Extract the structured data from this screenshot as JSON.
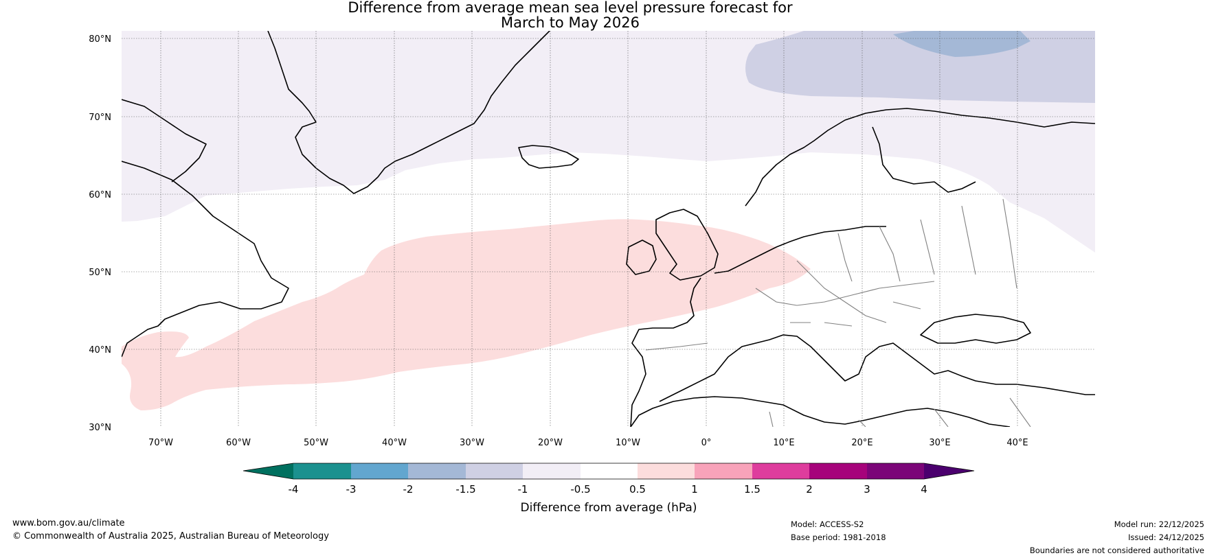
{
  "title": {
    "line1": "Difference from average mean sea level pressure forecast for",
    "line2": "March to May 2026"
  },
  "map": {
    "lat_labels": [
      "80°N",
      "70°N",
      "60°N",
      "50°N",
      "40°N",
      "30°N"
    ],
    "lon_labels": [
      "70°W",
      "60°W",
      "50°W",
      "40°W",
      "30°W",
      "20°W",
      "10°W",
      "0°",
      "10°E",
      "20°E",
      "30°E",
      "40°E"
    ],
    "lat_range": [
      30,
      81
    ],
    "lon_range": [
      -75,
      50
    ],
    "anomaly_regions": [
      {
        "name": "arctic-low-anomaly",
        "bin": "-2 to -1.5"
      },
      {
        "name": "barents-low-anomaly",
        "bin": "-1.5 to -1"
      },
      {
        "name": "north-low-anomaly",
        "bin": "-1 to -0.5"
      },
      {
        "name": "atlantic-high-anomaly",
        "bin": "0.5 to 1"
      }
    ]
  },
  "colorbar": {
    "ticks": [
      "-4",
      "-3",
      "-2",
      "-1.5",
      "-1",
      "-0.5",
      "0.5",
      "1",
      "1.5",
      "2",
      "3",
      "4"
    ],
    "colors": [
      "#00705f",
      "#1b918f",
      "#62a6cf",
      "#a4b8d6",
      "#cfd0e4",
      "#f2eef6",
      "#ffffff",
      "#fcdddd",
      "#f8a3ba",
      "#de3d9d",
      "#a6037b",
      "#7b0578",
      "#4b006e"
    ],
    "label": "Difference from average (hPa)"
  },
  "footer": {
    "website": "www.bom.gov.au/climate",
    "copyright": "© Commonwealth of Australia 2025, Australian Bureau of Meteorology",
    "model": "Model: ACCESS-S2",
    "base_period": "Base period: 1981-2018",
    "model_run": "Model run: 22/12/2025",
    "issued": "Issued: 24/12/2025",
    "disclaimer": "Boundaries are not considered authoritative"
  }
}
